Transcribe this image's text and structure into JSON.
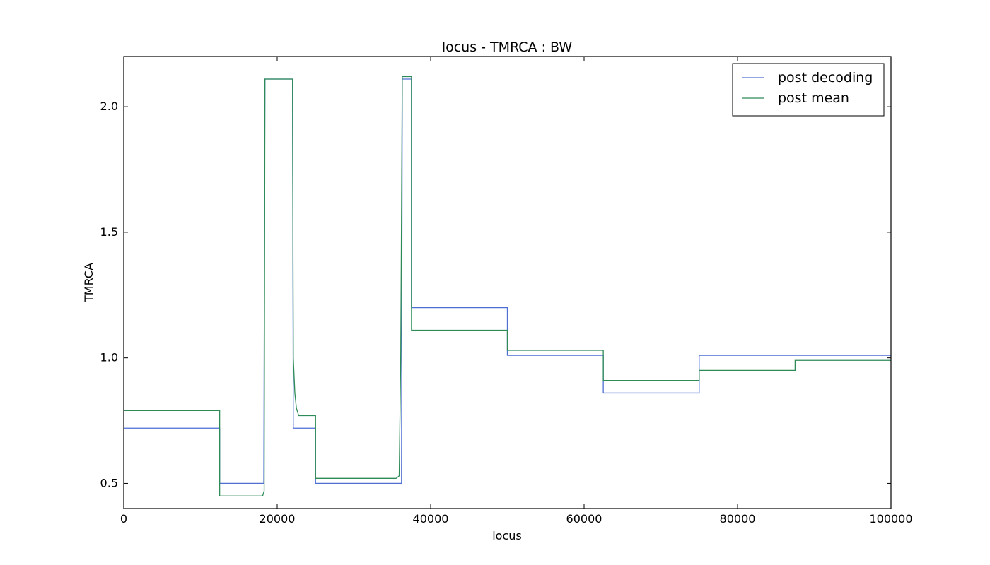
{
  "chart_data": {
    "type": "line",
    "title": "locus - TMRCA : BW",
    "xlabel": "locus",
    "ylabel": "TMRCA",
    "xlim": [
      0,
      100000
    ],
    "ylim": [
      0.4,
      2.2
    ],
    "xticks": [
      0,
      20000,
      40000,
      60000,
      80000,
      100000
    ],
    "xtick_labels": [
      "0",
      "20000",
      "40000",
      "60000",
      "80000",
      "100000"
    ],
    "yticks": [
      0.5,
      1.0,
      1.5,
      2.0
    ],
    "ytick_labels": [
      "0.5",
      "1.0",
      "1.5",
      "2.0"
    ],
    "grid": false,
    "legend_position": "top-right",
    "series": [
      {
        "name": "post decoding",
        "color": "#4f6fd5",
        "x": [
          0,
          12500,
          12500,
          18250,
          18400,
          22000,
          22100,
          25000,
          25000,
          36200,
          36300,
          37500,
          37500,
          50000,
          50000,
          62500,
          62500,
          75000,
          75000,
          100000
        ],
        "y": [
          0.72,
          0.72,
          0.5,
          0.5,
          2.11,
          2.11,
          0.72,
          0.72,
          0.5,
          0.5,
          2.11,
          2.11,
          1.2,
          1.2,
          1.01,
          1.01,
          0.86,
          0.86,
          1.01,
          1.01
        ]
      },
      {
        "name": "post mean",
        "color": "#2e8b57",
        "x": [
          0,
          12500,
          12500,
          18100,
          18300,
          18400,
          22000,
          22100,
          22300,
          22500,
          22800,
          25000,
          25000,
          35500,
          35900,
          36100,
          36300,
          37500,
          37500,
          50000,
          50000,
          62500,
          62500,
          75000,
          75000,
          87500,
          87500,
          100000
        ],
        "y": [
          0.79,
          0.79,
          0.45,
          0.45,
          0.47,
          2.11,
          2.11,
          1.0,
          0.86,
          0.8,
          0.77,
          0.77,
          0.52,
          0.52,
          0.53,
          1.0,
          2.12,
          2.12,
          1.11,
          1.11,
          1.03,
          1.03,
          0.91,
          0.91,
          0.95,
          0.95,
          0.99,
          0.99
        ]
      }
    ]
  }
}
